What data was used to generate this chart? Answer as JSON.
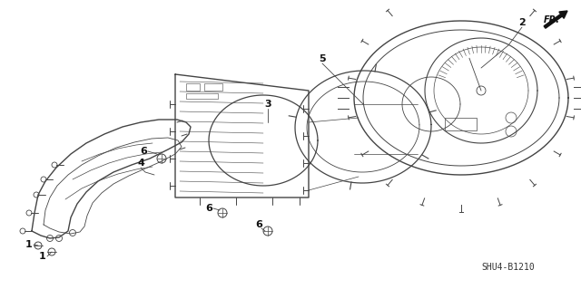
{
  "bg_color": "#ffffff",
  "line_color": "#444444",
  "label_color": "#111111",
  "part_number": "SHU4-B1210",
  "direction_label": "FR.",
  "figsize": [
    6.4,
    3.19
  ],
  "dpi": 100
}
